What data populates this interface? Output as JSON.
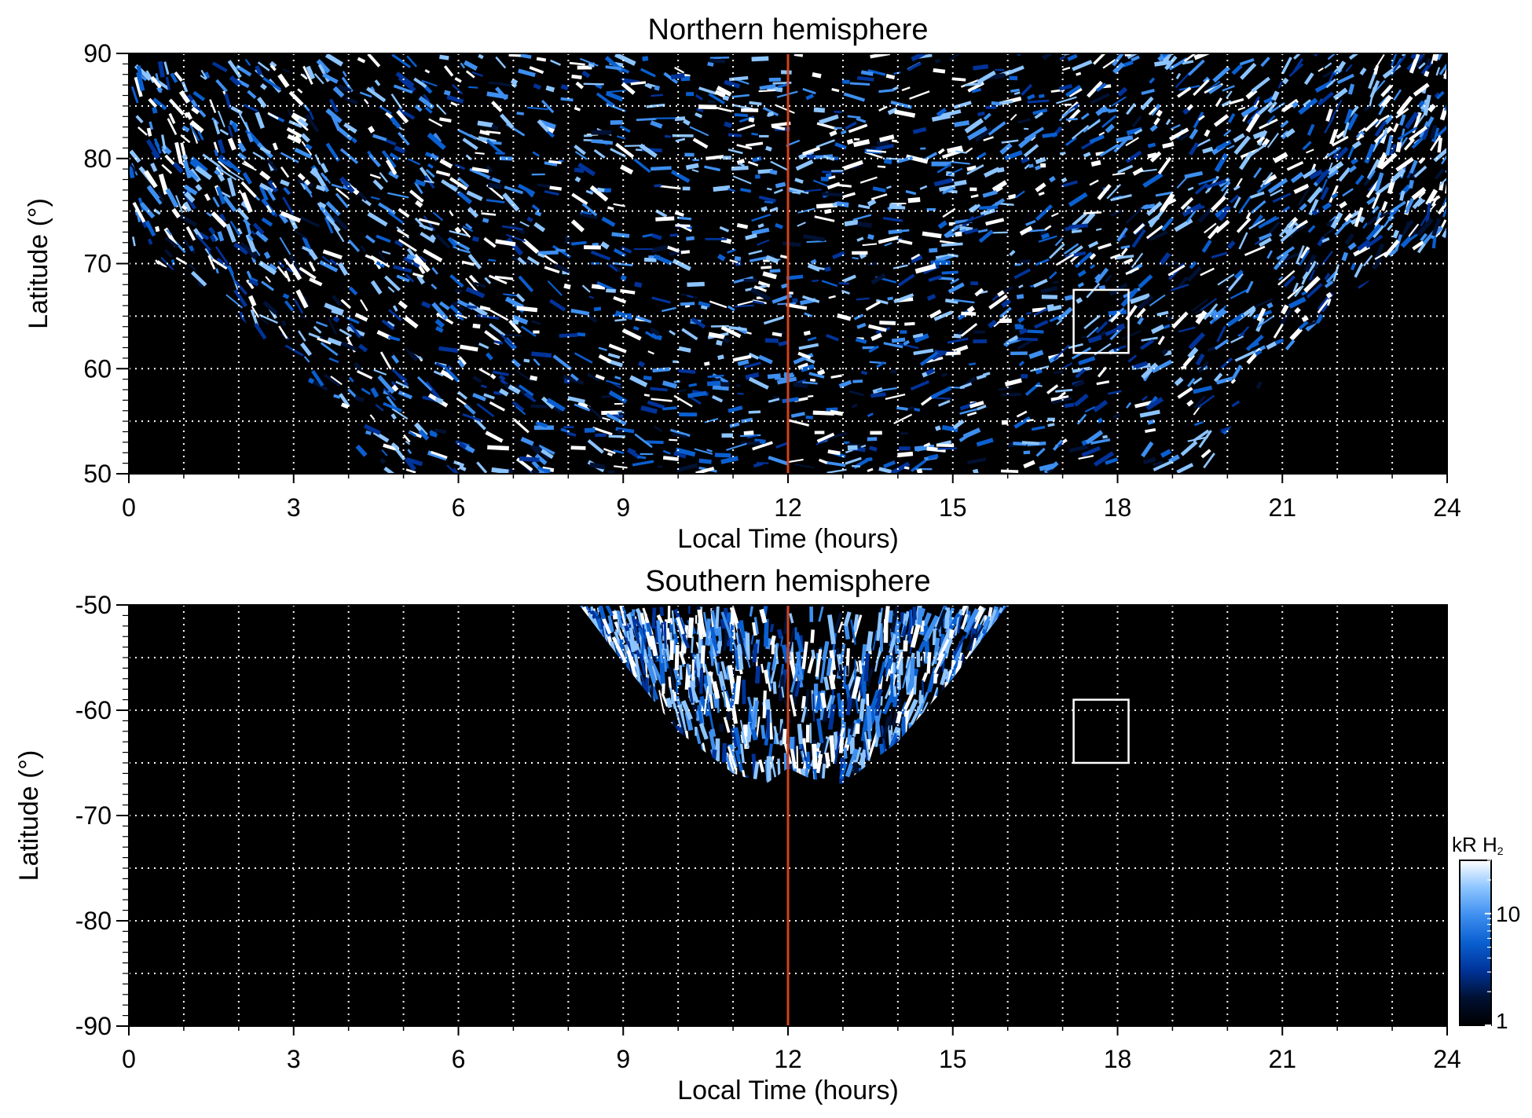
{
  "chart_data": [
    {
      "type": "heatmap",
      "title": "Northern hemisphere",
      "xlabel": "Local Time (hours)",
      "ylabel": "Latitude (°)",
      "xlim": [
        0,
        24
      ],
      "ylim": [
        50,
        90
      ],
      "xticks": [
        "0",
        "3",
        "6",
        "9",
        "12",
        "15",
        "18",
        "21",
        "24"
      ],
      "xtick_values": [
        0,
        3,
        6,
        9,
        12,
        15,
        18,
        21,
        24
      ],
      "yticks": [
        "50",
        "60",
        "70",
        "80",
        "90"
      ],
      "ytick_values": [
        50,
        60,
        70,
        80,
        90
      ],
      "grid": true,
      "grid_style": "dotted white",
      "grid_x_step_hours": 1,
      "grid_y_step_deg": 5,
      "reference_line": {
        "x": 12,
        "color": "#d2421a"
      },
      "box": {
        "x": [
          17.2,
          18.2
        ],
        "y": [
          61.5,
          67.5
        ],
        "color": "#ffffff"
      },
      "coverage": {
        "description_values": "lower latitude edge of observed emission vs local time",
        "lt": [
          0,
          1,
          2,
          3,
          4,
          4.3,
          5,
          6,
          7,
          8,
          9,
          10,
          11,
          12,
          13,
          14,
          15,
          16,
          17,
          18,
          19,
          19.7,
          20,
          21,
          22,
          23,
          24
        ],
        "lat": [
          71,
          69,
          65,
          60,
          54,
          50,
          50,
          50,
          50,
          50,
          50,
          50,
          50,
          50,
          50,
          50,
          50,
          50,
          50,
          50,
          50,
          50,
          54,
          61,
          66,
          70,
          71
        ]
      },
      "background_color": "#000000",
      "colormap": [
        "#000000",
        "#001133",
        "#00339a",
        "#0a5fd0",
        "#3e8ff0",
        "#8cc4ff",
        "#ffffff"
      ]
    },
    {
      "type": "heatmap",
      "title": "Southern hemisphere",
      "xlabel": "Local Time (hours)",
      "ylabel": "Latitude (°)",
      "xlim": [
        0,
        24
      ],
      "ylim": [
        -90,
        -50
      ],
      "xticks": [
        "0",
        "3",
        "6",
        "9",
        "12",
        "15",
        "18",
        "21",
        "24"
      ],
      "xtick_values": [
        0,
        3,
        6,
        9,
        12,
        15,
        18,
        21,
        24
      ],
      "yticks": [
        "-50",
        "-60",
        "-70",
        "-80",
        "-90"
      ],
      "ytick_values": [
        -50,
        -60,
        -70,
        -80,
        -90
      ],
      "grid": true,
      "grid_style": "dotted white",
      "grid_x_step_hours": 1,
      "grid_y_step_deg": 5,
      "reference_line": {
        "x": 12,
        "color": "#d2421a"
      },
      "box": {
        "x": [
          17.2,
          18.2
        ],
        "y": [
          -65,
          -59
        ],
        "color": "#ffffff"
      },
      "coverage": {
        "description_values": "equatorward observed region bounded by -50 and this curve",
        "lt": [
          8.2,
          9,
          10,
          11,
          11.6,
          12,
          12.4,
          13,
          14,
          15,
          16
        ],
        "lat": [
          -50,
          -55.5,
          -62,
          -66,
          -67,
          -65.5,
          -66.5,
          -67,
          -63,
          -57,
          -50
        ]
      },
      "background_color": "#000000",
      "colormap": [
        "#000000",
        "#001133",
        "#00339a",
        "#0a5fd0",
        "#3e8ff0",
        "#8cc4ff",
        "#ffffff"
      ]
    }
  ],
  "colorbar": {
    "label_main": "kR H",
    "label_sub": "2",
    "ticks": [
      "1",
      "10"
    ],
    "tick_values": [
      1,
      10
    ],
    "range": [
      1,
      30
    ],
    "scale": "log",
    "colors": [
      "#000000",
      "#001133",
      "#00339a",
      "#0a5fd0",
      "#3e8ff0",
      "#8cc4ff",
      "#ffffff"
    ]
  }
}
